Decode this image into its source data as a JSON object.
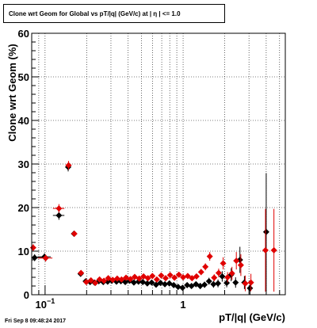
{
  "title": "Clone wrt Geom for Global vs pT/|q| (GeV/c) at |  η | <= 1.0",
  "footer": "Fri Sep  8 09:48:24 2017",
  "chart_data": {
    "type": "scatter",
    "title": "Clone wrt Geom for Global vs pT/|q| (GeV/c) at |  η | <= 1.0",
    "xlabel": "pT/|q| (GeV/c)",
    "ylabel": "Clone wrt Geom (%)",
    "x_scale": "log",
    "xlim": [
      0.08,
      5.5
    ],
    "ylim": [
      0,
      60
    ],
    "y_ticks": [
      0,
      10,
      20,
      30,
      40,
      50,
      60
    ],
    "x_tick_labels": [
      {
        "value": 0.1,
        "label": "10",
        "exp": "−1"
      },
      {
        "value": 1,
        "label": "1",
        "exp": ""
      }
    ],
    "grid": true,
    "colors": {
      "series_black": "#000000",
      "series_red": "#e00000"
    },
    "series": [
      {
        "color": "#000000",
        "points": [
          [
            0.084,
            8.5,
            0.8,
            0.012
          ],
          [
            0.099,
            8.7,
            0.8,
            0.011
          ],
          [
            0.126,
            18.2,
            1.0,
            0.012
          ],
          [
            0.147,
            29.3,
            1.0,
            0.007
          ],
          [
            0.162,
            14.0,
            0.6,
            0.005
          ],
          [
            0.181,
            4.8,
            0.6,
            0.006
          ],
          [
            0.197,
            3.1,
            0.5,
            0.005
          ],
          [
            0.212,
            2.9,
            0.5,
            0.005
          ],
          [
            0.228,
            2.8,
            0.5,
            0.005
          ],
          [
            0.245,
            3.1,
            0.5,
            0.006
          ],
          [
            0.264,
            2.9,
            0.5,
            0.006
          ],
          [
            0.284,
            3.0,
            0.5,
            0.006
          ],
          [
            0.305,
            3.2,
            0.5,
            0.007
          ],
          [
            0.329,
            3.0,
            0.5,
            0.007
          ],
          [
            0.354,
            3.1,
            0.5,
            0.008
          ],
          [
            0.381,
            2.9,
            0.5,
            0.008
          ],
          [
            0.41,
            3.2,
            0.5,
            0.009
          ],
          [
            0.44,
            2.8,
            0.5,
            0.01
          ],
          [
            0.475,
            3.0,
            0.5,
            0.01
          ],
          [
            0.51,
            2.9,
            0.5,
            0.011
          ],
          [
            0.55,
            2.6,
            0.5,
            0.012
          ],
          [
            0.592,
            2.8,
            0.5,
            0.013
          ],
          [
            0.637,
            2.3,
            0.5,
            0.014
          ],
          [
            0.685,
            2.7,
            0.5,
            0.015
          ],
          [
            0.738,
            2.4,
            0.5,
            0.016
          ],
          [
            0.795,
            2.6,
            0.5,
            0.017
          ],
          [
            0.855,
            2.2,
            0.5,
            0.019
          ],
          [
            0.92,
            1.8,
            0.5,
            0.02
          ],
          [
            0.99,
            1.6,
            0.6,
            0.022
          ],
          [
            1.07,
            2.2,
            0.6,
            0.023
          ],
          [
            1.15,
            2.0,
            0.6,
            0.025
          ],
          [
            1.24,
            2.4,
            0.6,
            0.027
          ],
          [
            1.33,
            2.0,
            0.7,
            0.029
          ],
          [
            1.43,
            2.3,
            0.7,
            0.031
          ],
          [
            1.54,
            3.1,
            0.8,
            0.034
          ],
          [
            1.66,
            2.4,
            0.8,
            0.036
          ],
          [
            1.79,
            2.6,
            0.9,
            0.039
          ],
          [
            1.92,
            4.2,
            1.2,
            0.042
          ],
          [
            2.07,
            2.7,
            1.0,
            0.045
          ],
          [
            2.23,
            4.6,
            1.5,
            0.048
          ],
          [
            2.4,
            2.8,
            1.2,
            0.052
          ],
          [
            2.58,
            8.0,
            3.0,
            0.056
          ],
          [
            2.78,
            2.8,
            1.5,
            0.06
          ],
          [
            3.05,
            1.5,
            1.5,
            0.07
          ],
          [
            4.0,
            14.4,
            13.5,
            0.1
          ]
        ]
      },
      {
        "color": "#e00000",
        "points": [
          [
            0.082,
            10.8,
            0.8,
            0.004
          ],
          [
            0.101,
            8.4,
            0.8,
            0.012
          ],
          [
            0.126,
            19.8,
            1.0,
            0.012
          ],
          [
            0.148,
            29.7,
            1.0,
            0.007
          ],
          [
            0.163,
            14.0,
            0.6,
            0.005
          ],
          [
            0.182,
            5.0,
            0.6,
            0.006
          ],
          [
            0.199,
            2.9,
            0.5,
            0.005
          ],
          [
            0.215,
            3.3,
            0.5,
            0.005
          ],
          [
            0.231,
            2.7,
            0.5,
            0.005
          ],
          [
            0.248,
            3.5,
            0.5,
            0.006
          ],
          [
            0.267,
            3.2,
            0.5,
            0.006
          ],
          [
            0.287,
            3.8,
            0.5,
            0.006
          ],
          [
            0.309,
            3.4,
            0.5,
            0.007
          ],
          [
            0.333,
            3.7,
            0.5,
            0.007
          ],
          [
            0.358,
            3.5,
            0.5,
            0.008
          ],
          [
            0.386,
            3.9,
            0.5,
            0.008
          ],
          [
            0.415,
            3.6,
            0.5,
            0.009
          ],
          [
            0.446,
            4.1,
            0.5,
            0.01
          ],
          [
            0.481,
            3.7,
            0.5,
            0.01
          ],
          [
            0.517,
            4.2,
            0.5,
            0.011
          ],
          [
            0.556,
            3.8,
            0.5,
            0.012
          ],
          [
            0.599,
            4.3,
            0.5,
            0.013
          ],
          [
            0.645,
            3.5,
            0.5,
            0.014
          ],
          [
            0.694,
            4.4,
            0.5,
            0.015
          ],
          [
            0.747,
            3.8,
            0.5,
            0.016
          ],
          [
            0.805,
            4.5,
            0.5,
            0.017
          ],
          [
            0.866,
            3.9,
            0.5,
            0.019
          ],
          [
            0.932,
            4.6,
            0.6,
            0.02
          ],
          [
            1.0,
            4.0,
            0.6,
            0.022
          ],
          [
            1.08,
            4.3,
            0.6,
            0.023
          ],
          [
            1.16,
            3.8,
            0.6,
            0.025
          ],
          [
            1.25,
            4.2,
            0.6,
            0.027
          ],
          [
            1.35,
            5.2,
            0.7,
            0.029
          ],
          [
            1.45,
            6.4,
            0.8,
            0.031
          ],
          [
            1.56,
            8.8,
            1.0,
            0.034
          ],
          [
            1.68,
            3.9,
            0.8,
            0.036
          ],
          [
            1.81,
            5.0,
            1.0,
            0.039
          ],
          [
            1.95,
            7.2,
            1.4,
            0.042
          ],
          [
            2.1,
            4.0,
            1.2,
            0.045
          ],
          [
            2.26,
            4.9,
            1.5,
            0.048
          ],
          [
            2.43,
            7.8,
            2.0,
            0.052
          ],
          [
            2.62,
            6.8,
            2.5,
            0.056
          ],
          [
            2.82,
            2.6,
            1.8,
            0.06
          ],
          [
            3.1,
            2.8,
            2.0,
            0.07
          ],
          [
            3.95,
            10.2,
            9.5,
            0.12
          ],
          [
            4.55,
            10.2,
            9.5,
            0.14
          ]
        ]
      }
    ]
  }
}
